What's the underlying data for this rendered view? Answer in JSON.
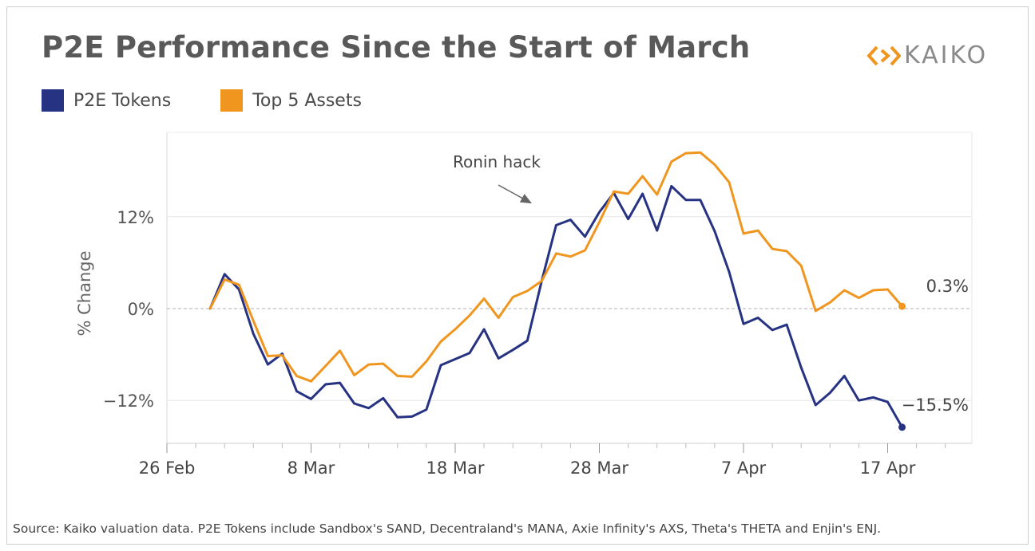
{
  "title": "P2E Performance Since the Start of March",
  "logo": {
    "text": "KAIKO",
    "icon": "kaiko-chevrons-logo"
  },
  "source": "Source: Kaiko valuation data. P2E Tokens include Sandbox's SAND, Decentraland's MANA, Axie Infinity's AXS, Theta's THETA and Enjin's ENJ.",
  "colors": {
    "p2e": "#263282",
    "top5": "#F0961E",
    "grid": "#e6e6e6",
    "zero": "#b0b0b0",
    "axis_text": "#555555"
  },
  "chart_data": {
    "type": "line",
    "title": "P2E Performance Since the Start of March",
    "ylabel": "% Change",
    "xlabel": "",
    "x_ticks": [
      "26 Feb",
      "8 Mar",
      "18 Mar",
      "28 Mar",
      "7 Apr",
      "17 Apr"
    ],
    "y_ticks": [
      "12%",
      "0%",
      "−12%"
    ],
    "y_tick_values": [
      12,
      0,
      -12
    ],
    "ylim": [
      -17.5,
      23
    ],
    "x_start_date": "2022-02-26",
    "grid": true,
    "legend_position": "top-left",
    "series": [
      {
        "name": "P2E Tokens",
        "color": "#263282",
        "x_start": "2022-03-01",
        "values": [
          0,
          4.5,
          2.5,
          -3.3,
          -7.3,
          -5.9,
          -10.8,
          -11.8,
          -9.9,
          -9.7,
          -12.4,
          -13.0,
          -11.7,
          -14.2,
          -14.1,
          -13.2,
          -7.4,
          -6.6,
          -5.8,
          -2.7,
          -6.5,
          -5.4,
          -4.2,
          3.6,
          10.9,
          11.6,
          9.4,
          12.6,
          15.1,
          11.7,
          15.0,
          10.2,
          16.0,
          14.2,
          14.2,
          10.1,
          4.8,
          -2.0,
          -1.2,
          -2.8,
          -2.1,
          -7.7,
          -12.6,
          -11.0,
          -8.8,
          -12.0,
          -11.6,
          -12.2,
          -15.5
        ],
        "end_label": "−15.5%"
      },
      {
        "name": "Top 5 Assets",
        "color": "#F0961E",
        "x_start": "2022-03-01",
        "values": [
          0,
          3.8,
          3.1,
          -1.6,
          -6.2,
          -6.1,
          -8.8,
          -9.5,
          -7.5,
          -5.5,
          -8.7,
          -7.3,
          -7.2,
          -8.8,
          -8.9,
          -6.9,
          -4.3,
          -2.7,
          -0.9,
          1.3,
          -1.2,
          1.5,
          2.3,
          3.6,
          7.2,
          6.8,
          7.6,
          11.3,
          15.3,
          15.0,
          17.3,
          14.9,
          19.2,
          20.3,
          20.4,
          18.8,
          16.5,
          9.8,
          10.2,
          7.8,
          7.5,
          5.6,
          -0.3,
          0.8,
          2.4,
          1.4,
          2.4,
          2.5,
          0.3
        ],
        "end_label": "0.3%"
      }
    ],
    "annotations": [
      {
        "text": "Ronin hack",
        "date": "2022-03-24",
        "value": 13.0,
        "arrow": true
      }
    ]
  }
}
